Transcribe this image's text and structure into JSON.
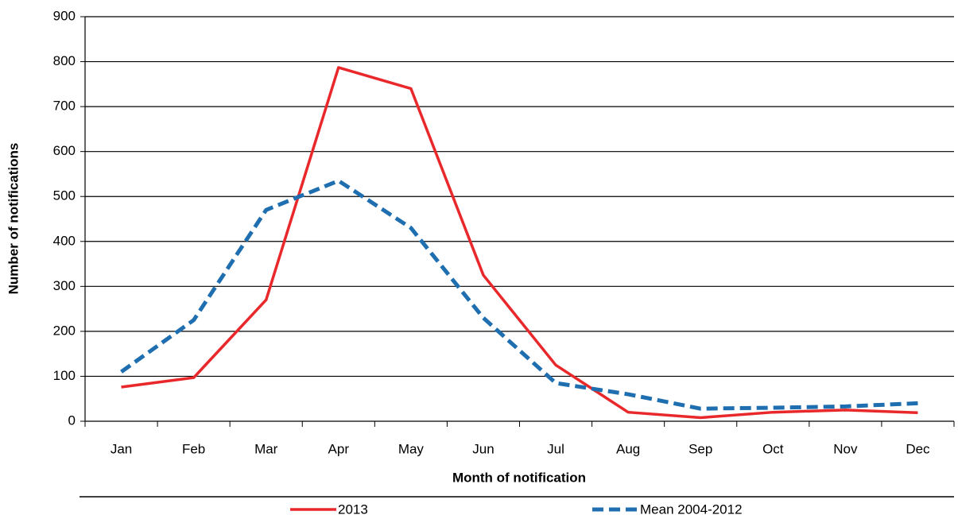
{
  "chart_data": {
    "type": "line",
    "x_label": "Month of notification",
    "y_label": "Number of notifications",
    "categories": [
      "Jan",
      "Feb",
      "Mar",
      "Apr",
      "May",
      "Jun",
      "Jul",
      "Aug",
      "Sep",
      "Oct",
      "Nov",
      "Dec"
    ],
    "series": [
      {
        "name": "2013",
        "color": "#e8282b",
        "dashed": false,
        "values": [
          76,
          97,
          270,
          787,
          740,
          325,
          125,
          20,
          8,
          20,
          25,
          19
        ]
      },
      {
        "name": "Mean 2004-2012",
        "color": "#1f6fb0",
        "dashed": true,
        "values": [
          110,
          225,
          470,
          535,
          430,
          230,
          85,
          60,
          28,
          30,
          33,
          40
        ]
      }
    ],
    "ylim": [
      0,
      900
    ],
    "yticks": [
      0,
      100,
      200,
      300,
      400,
      500,
      600,
      700,
      800,
      900
    ],
    "grid": true,
    "legend": "bottom"
  }
}
